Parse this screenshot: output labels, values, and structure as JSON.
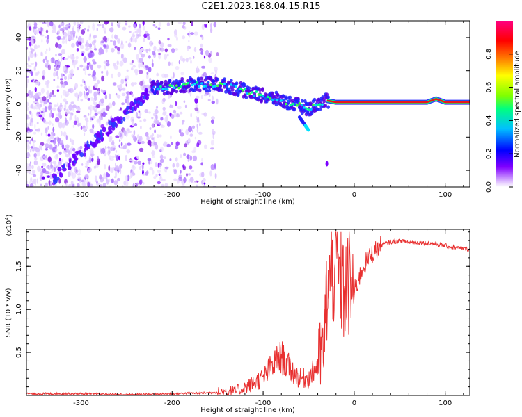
{
  "figure": {
    "title": "C2E1.2023.168.04.15.R15"
  },
  "chart_data": [
    {
      "type": "heatmap",
      "xlabel": "Height of straight line (km)",
      "ylabel": "Frequency (Hz)",
      "xlim": [
        -360,
        127
      ],
      "ylim": [
        -50,
        50
      ],
      "xticks": [
        -300,
        -200,
        -100,
        0,
        100
      ],
      "yticks": [
        -40,
        -20,
        0,
        20,
        40
      ],
      "colorbar": {
        "label": "Normalized spectral amplitude",
        "range": [
          0.0,
          1.0
        ],
        "ticks": [
          "0.0",
          "0.2",
          "0.4",
          "0.6",
          "0.8"
        ],
        "tick_values": [
          0.0,
          0.2,
          0.4,
          0.6,
          0.8
        ],
        "colormap": [
          "#ffffff",
          "#cc99ff",
          "#8000ff",
          "#0000ff",
          "#00c0ff",
          "#00ff80",
          "#80ff00",
          "#ffff00",
          "#ff8000",
          "#ff0000",
          "#ff0080"
        ]
      },
      "ridge": {
        "x": [
          -220,
          -200,
          -180,
          -160,
          -140,
          -120,
          -100,
          -80,
          -60,
          -50,
          -40,
          -30,
          -20,
          0,
          50,
          80,
          90,
          100,
          127
        ],
        "y": [
          10,
          10,
          12,
          12,
          11,
          8,
          5,
          2,
          -1,
          -3,
          0,
          2,
          1,
          1,
          1,
          1,
          3,
          1,
          1
        ]
      },
      "background_noise_xrange": [
        -360,
        -150
      ],
      "spur": {
        "x": [
          -60,
          -50
        ],
        "y": [
          -8,
          -16
        ]
      },
      "isolated_point": {
        "x": -30,
        "y": -36
      }
    },
    {
      "type": "line",
      "xlabel": "Height of straight line (km)",
      "ylabel": "SNR (10 * v/v)",
      "yscale_label": "(x10",
      "yscale_exp": "4",
      "xlim": [
        -360,
        127
      ],
      "ylim": [
        0,
        1.93
      ],
      "xticks": [
        -300,
        -200,
        -100,
        0,
        100
      ],
      "yticks": [
        "0.5",
        "1.0",
        "1.5"
      ],
      "ytick_values": [
        0.5,
        1.0,
        1.5
      ],
      "color": "#e83030",
      "series": [
        {
          "x": [
            -360,
            -300,
            -250,
            -200,
            -160,
            -130,
            -115,
            -100,
            -90,
            -80,
            -70,
            -60,
            -50,
            -40,
            -33,
            -30,
            -25,
            -20,
            -15,
            -10,
            -5,
            0,
            10,
            20,
            30,
            40,
            50,
            60,
            70,
            80,
            90,
            100,
            110,
            127
          ],
          "y": [
            0.02,
            0.02,
            0.01,
            0.02,
            0.03,
            0.05,
            0.12,
            0.2,
            0.35,
            0.45,
            0.3,
            0.2,
            0.2,
            0.35,
            0.6,
            1.2,
            1.4,
            1.6,
            1.3,
            1.2,
            1.3,
            1.2,
            1.5,
            1.65,
            1.75,
            1.78,
            1.8,
            1.78,
            1.78,
            1.77,
            1.76,
            1.74,
            1.72,
            1.7
          ]
        }
      ]
    }
  ]
}
